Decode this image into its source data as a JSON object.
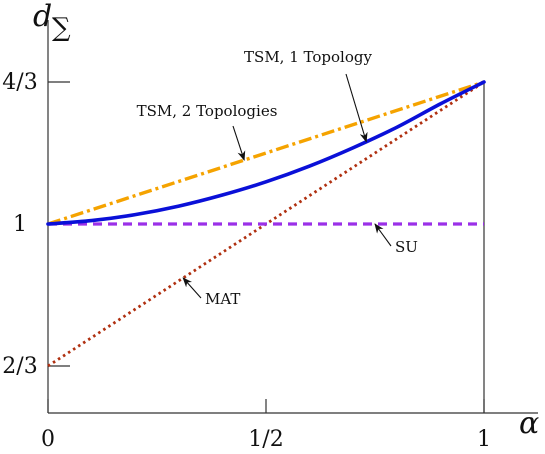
{
  "chart_data": {
    "type": "line",
    "xlabel": "α",
    "ylabel": {
      "main": "d",
      "sub": "∑"
    },
    "xlim": [
      0,
      1
    ],
    "ylim": [
      0.5,
      1.42
    ],
    "xticks": [
      {
        "value": 0,
        "label": "0"
      },
      {
        "value": 0.5,
        "label": "1/2"
      },
      {
        "value": 1,
        "label": "1"
      }
    ],
    "yticks": [
      {
        "value": 0.6667,
        "label": "2/3"
      },
      {
        "value": 1,
        "label": "1"
      },
      {
        "value": 1.3333,
        "label": "4/3"
      }
    ],
    "grid": false,
    "colors": {
      "tsm2": "#F5A300",
      "tsm1": "#0A10D8",
      "su": "#9B30E8",
      "mat": "#B03010",
      "axis": "#333333",
      "arrow": "#111111"
    },
    "series": [
      {
        "id": "tsm2",
        "name": "TSM, 2 Topologies",
        "style": "dashdot",
        "x": [
          0,
          1
        ],
        "y": [
          1.0,
          1.3333
        ]
      },
      {
        "id": "tsm1",
        "name": "TSM, 1 Topology",
        "style": "solid",
        "x": [
          0,
          0.1,
          0.2,
          0.3,
          0.4,
          0.5,
          0.6,
          0.7,
          0.8,
          0.9,
          1.0
        ],
        "y": [
          1.0,
          1.008,
          1.022,
          1.042,
          1.068,
          1.099,
          1.136,
          1.179,
          1.227,
          1.282,
          1.3333
        ]
      },
      {
        "id": "su",
        "name": "SU",
        "style": "dashed",
        "x": [
          0,
          1
        ],
        "y": [
          1.0,
          1.0
        ]
      },
      {
        "id": "mat",
        "name": "MAT",
        "style": "dotted",
        "x": [
          0,
          1
        ],
        "y": [
          0.6667,
          1.3333
        ]
      }
    ],
    "annotations": [
      {
        "text": "TSM, 1 Topology",
        "series": "tsm1",
        "arrow_x": 0.73
      },
      {
        "text": "TSM, 2 Topologies",
        "series": "tsm2",
        "arrow_x": 0.45
      },
      {
        "text": "SU",
        "series": "su",
        "arrow_x": 0.75
      },
      {
        "text": "MAT",
        "series": "mat",
        "arrow_x": 0.31
      }
    ]
  }
}
